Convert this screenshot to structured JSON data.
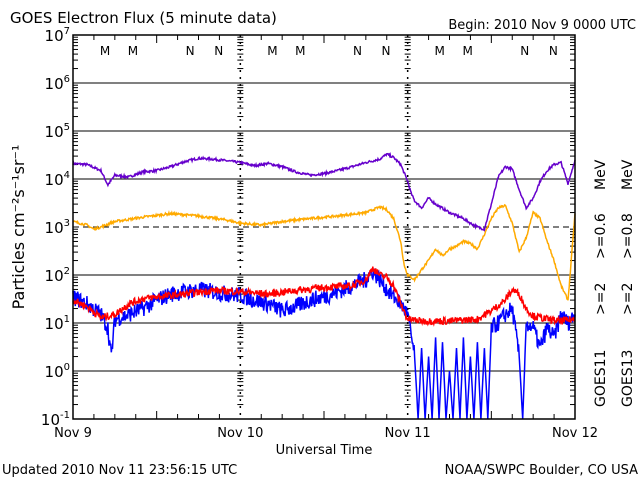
{
  "chart_data": {
    "type": "line",
    "title": "GOES Electron Flux (5 minute data)",
    "begin_label": "Begin: 2010 Nov 9 0000 UTC",
    "xlabel": "Universal Time",
    "ylabel": "Particles cm⁻²s⁻¹sr⁻¹",
    "x_unit": "hours since 2010 Nov 9 0000 UTC",
    "xlim": [
      0,
      72
    ],
    "ylim": [
      0.1,
      10000000
    ],
    "yscale": "log",
    "x_tick_labels": [
      {
        "hour": 0,
        "label": "Nov 9"
      },
      {
        "hour": 24,
        "label": "Nov 10"
      },
      {
        "hour": 48,
        "label": "Nov 11"
      },
      {
        "hour": 72,
        "label": "Nov 12"
      }
    ],
    "y_tick_labels": [
      {
        "exp": 7,
        "base": "10",
        "sup": "7"
      },
      {
        "exp": 6,
        "base": "10",
        "sup": "6"
      },
      {
        "exp": 5,
        "base": "10",
        "sup": "5"
      },
      {
        "exp": 4,
        "base": "10",
        "sup": "4"
      },
      {
        "exp": 3,
        "base": "10",
        "sup": "3"
      },
      {
        "exp": 2,
        "base": "10",
        "sup": "2"
      },
      {
        "exp": 1,
        "base": "10",
        "sup": "1"
      },
      {
        "exp": 0,
        "base": "10",
        "sup": "0"
      },
      {
        "exp": -1,
        "base": "10",
        "sup": "-1"
      }
    ],
    "threshold_line": 1000,
    "markers": [
      {
        "label": "M",
        "color": "#ff0000",
        "hours": [
          4.6,
          28.6,
          52.6
        ]
      },
      {
        "label": "M",
        "color": "#0000ff",
        "hours": [
          8.6,
          32.6,
          56.6
        ]
      },
      {
        "label": "N",
        "color": "#ff0000",
        "hours": [
          16.8,
          40.8,
          64.8
        ]
      },
      {
        "label": "N",
        "color": "#0000ff",
        "hours": [
          20.9,
          44.9,
          68.9
        ]
      }
    ],
    "series": [
      {
        "name": "GOES11 >=0.6 MeV",
        "color": "#6600cc",
        "points": [
          [
            0,
            21000
          ],
          [
            2,
            20000
          ],
          [
            4,
            15000
          ],
          [
            5,
            7500
          ],
          [
            6,
            12000
          ],
          [
            8,
            11000
          ],
          [
            10,
            14000
          ],
          [
            12,
            15000
          ],
          [
            14,
            18000
          ],
          [
            16,
            23000
          ],
          [
            18,
            27000
          ],
          [
            20,
            26000
          ],
          [
            22,
            24000
          ],
          [
            24,
            22000
          ],
          [
            26,
            19000
          ],
          [
            28,
            21000
          ],
          [
            30,
            18000
          ],
          [
            32,
            14000
          ],
          [
            34,
            12000
          ],
          [
            36,
            13000
          ],
          [
            38,
            15000
          ],
          [
            40,
            18000
          ],
          [
            42,
            22000
          ],
          [
            44,
            26000
          ],
          [
            45,
            33000
          ],
          [
            46,
            28000
          ],
          [
            47,
            20000
          ],
          [
            48,
            9000
          ],
          [
            48.5,
            5000
          ],
          [
            49,
            3500
          ],
          [
            50,
            2500
          ],
          [
            51,
            4000
          ],
          [
            52,
            3000
          ],
          [
            54,
            2000
          ],
          [
            56,
            1500
          ],
          [
            57,
            1200
          ],
          [
            58,
            1000
          ],
          [
            59,
            900
          ],
          [
            60,
            3000
          ],
          [
            61,
            11000
          ],
          [
            62,
            18000
          ],
          [
            63,
            16000
          ],
          [
            64,
            6000
          ],
          [
            65,
            2500
          ],
          [
            66,
            4000
          ],
          [
            67,
            9000
          ],
          [
            68,
            15000
          ],
          [
            69,
            20000
          ],
          [
            70,
            22000
          ],
          [
            71,
            8000
          ],
          [
            72,
            25000
          ]
        ]
      },
      {
        "name": "GOES13 >=0.8 MeV",
        "color": "#ffaa00",
        "points": [
          [
            0,
            1300
          ],
          [
            2,
            1100
          ],
          [
            3,
            900
          ],
          [
            4,
            1000
          ],
          [
            6,
            1300
          ],
          [
            10,
            1600
          ],
          [
            14,
            1900
          ],
          [
            18,
            1700
          ],
          [
            22,
            1400
          ],
          [
            24,
            1200
          ],
          [
            27,
            1100
          ],
          [
            30,
            1300
          ],
          [
            34,
            1500
          ],
          [
            38,
            1700
          ],
          [
            42,
            2000
          ],
          [
            44,
            2600
          ],
          [
            45,
            2300
          ],
          [
            46,
            1500
          ],
          [
            47,
            500
          ],
          [
            47.5,
            160
          ],
          [
            48,
            100
          ],
          [
            49,
            80
          ],
          [
            50,
            130
          ],
          [
            51,
            200
          ],
          [
            52,
            350
          ],
          [
            53,
            250
          ],
          [
            54,
            350
          ],
          [
            55,
            400
          ],
          [
            56,
            500
          ],
          [
            57,
            450
          ],
          [
            58,
            350
          ],
          [
            59,
            700
          ],
          [
            60,
            1500
          ],
          [
            61,
            2500
          ],
          [
            62,
            2800
          ],
          [
            63,
            1200
          ],
          [
            64,
            300
          ],
          [
            65,
            600
          ],
          [
            66,
            2000
          ],
          [
            67,
            1500
          ],
          [
            68,
            500
          ],
          [
            69,
            200
          ],
          [
            70,
            60
          ],
          [
            71,
            30
          ],
          [
            72,
            1900
          ]
        ]
      },
      {
        "name": "GOES11 >=2 MeV",
        "color": "#0000ff",
        "points": [
          [
            0,
            35
          ],
          [
            2,
            25
          ],
          [
            4,
            15
          ],
          [
            5,
            8
          ],
          [
            5.5,
            2
          ],
          [
            6,
            12
          ],
          [
            8,
            15
          ],
          [
            10,
            20
          ],
          [
            12,
            30
          ],
          [
            14,
            40
          ],
          [
            16,
            45
          ],
          [
            18,
            50
          ],
          [
            20,
            45
          ],
          [
            22,
            40
          ],
          [
            24,
            38
          ],
          [
            26,
            30
          ],
          [
            28,
            25
          ],
          [
            30,
            18
          ],
          [
            32,
            22
          ],
          [
            34,
            30
          ],
          [
            36,
            35
          ],
          [
            38,
            45
          ],
          [
            40,
            60
          ],
          [
            42,
            80
          ],
          [
            43,
            120
          ],
          [
            44,
            80
          ],
          [
            45,
            50
          ],
          [
            46,
            35
          ],
          [
            47,
            25
          ],
          [
            48,
            15
          ],
          [
            49,
            2
          ],
          [
            49.5,
            0.1
          ],
          [
            50,
            3
          ],
          [
            50.5,
            0.1
          ],
          [
            51,
            2
          ],
          [
            51.5,
            0.1
          ],
          [
            52,
            5
          ],
          [
            52.5,
            0.1
          ],
          [
            53,
            4
          ],
          [
            53.5,
            0.1
          ],
          [
            54,
            1
          ],
          [
            54.5,
            0.1
          ],
          [
            55,
            3
          ],
          [
            55.5,
            0.1
          ],
          [
            56,
            5
          ],
          [
            56.5,
            0.1
          ],
          [
            57,
            2
          ],
          [
            57.5,
            0.1
          ],
          [
            58,
            4
          ],
          [
            58.5,
            0.1
          ],
          [
            59,
            3
          ],
          [
            59.5,
            0.1
          ],
          [
            60,
            8
          ],
          [
            61,
            10
          ],
          [
            62,
            15
          ],
          [
            63,
            20
          ],
          [
            64,
            2
          ],
          [
            64.5,
            0.1
          ],
          [
            65,
            10
          ],
          [
            66,
            8
          ],
          [
            67,
            3
          ],
          [
            68,
            8
          ],
          [
            69,
            5
          ],
          [
            70,
            15
          ],
          [
            71,
            10
          ],
          [
            72,
            15
          ]
        ]
      },
      {
        "name": "GOES13 >=2 MeV",
        "color": "#ff0000",
        "points": [
          [
            0,
            30
          ],
          [
            2,
            22
          ],
          [
            4,
            13
          ],
          [
            6,
            15
          ],
          [
            8,
            25
          ],
          [
            10,
            32
          ],
          [
            12,
            35
          ],
          [
            16,
            40
          ],
          [
            20,
            48
          ],
          [
            24,
            45
          ],
          [
            28,
            40
          ],
          [
            32,
            48
          ],
          [
            36,
            55
          ],
          [
            40,
            60
          ],
          [
            42,
            80
          ],
          [
            43,
            140
          ],
          [
            44,
            100
          ],
          [
            45,
            90
          ],
          [
            46,
            60
          ],
          [
            47,
            25
          ],
          [
            48,
            12
          ],
          [
            50,
            11
          ],
          [
            54,
            11
          ],
          [
            58,
            12
          ],
          [
            60,
            18
          ],
          [
            62,
            30
          ],
          [
            63,
            50
          ],
          [
            64,
            40
          ],
          [
            65,
            20
          ],
          [
            66,
            14
          ],
          [
            68,
            12
          ],
          [
            70,
            11
          ],
          [
            72,
            12
          ]
        ]
      }
    ]
  },
  "legend": {
    "goes11": "GOES11",
    "goes13": "GOES13",
    "g11_2": ">=2",
    "g13_2": ">=2",
    "g11_06": ">=0.6",
    "g13_08": ">=0.8",
    "mev1": "MeV",
    "mev2": "MeV",
    "c_g11_2": "#0000ff",
    "c_g13_2": "#ff0000",
    "c_g11_06": "#6600cc",
    "c_g13_08": "#ffaa00"
  },
  "footer": {
    "updated": "Updated 2010 Nov 11 23:56:15 UTC",
    "credit": "NOAA/SWPC Boulder, CO USA"
  }
}
